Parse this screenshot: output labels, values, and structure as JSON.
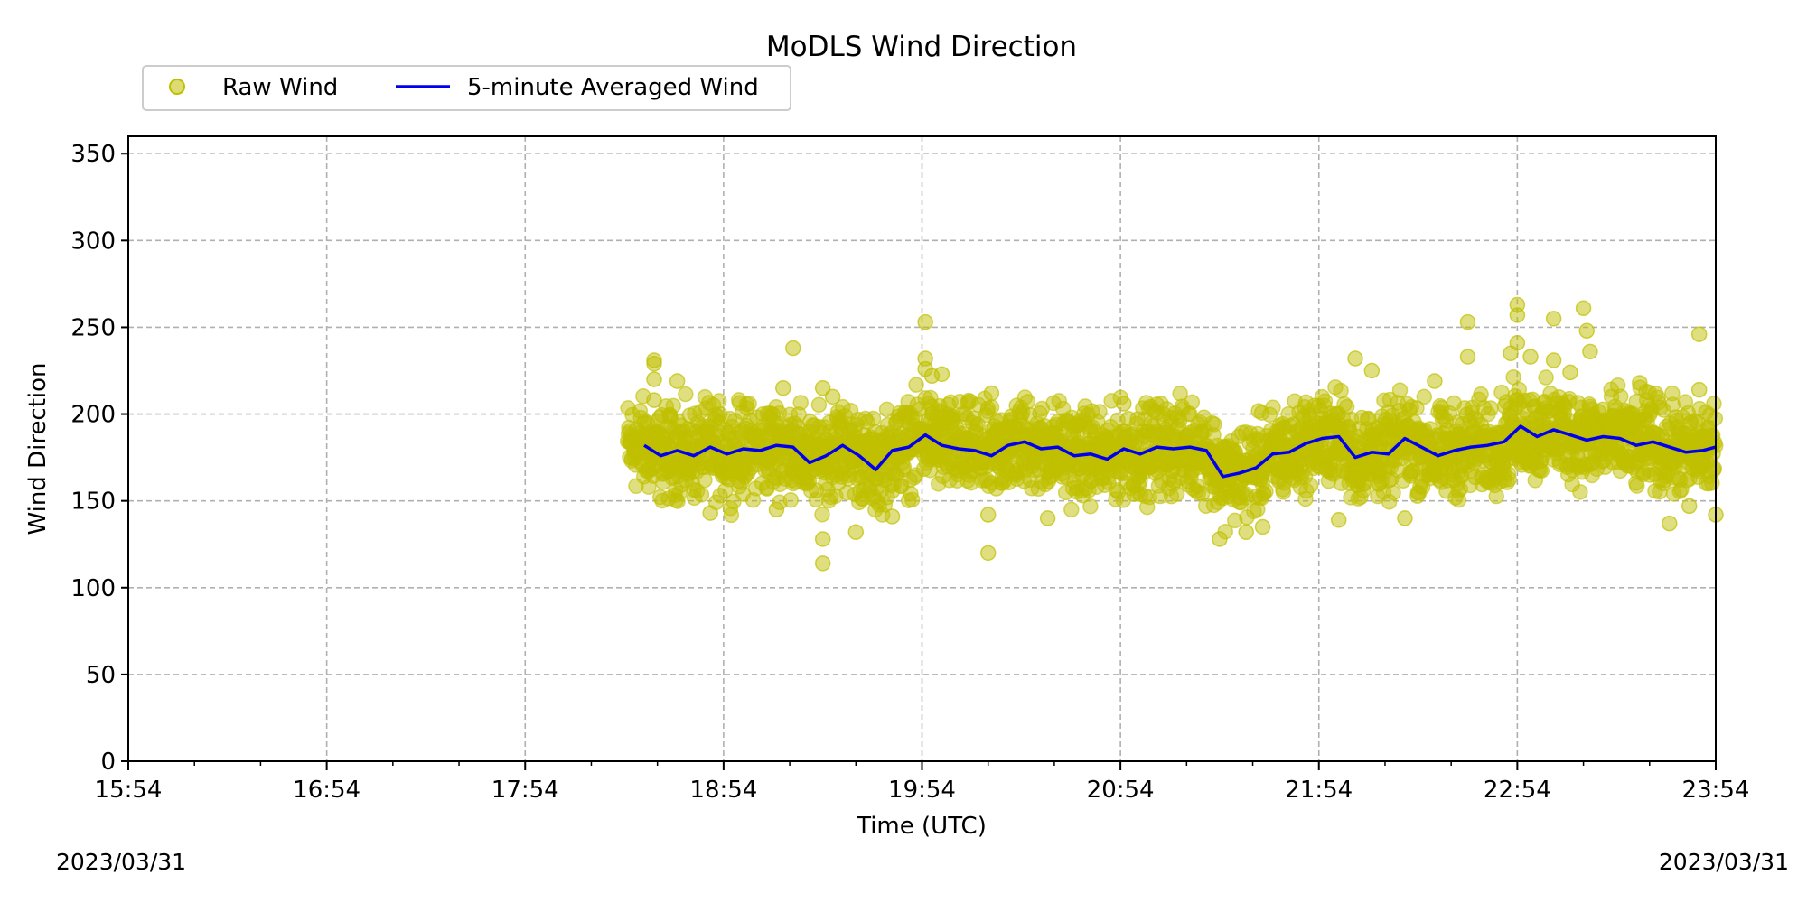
{
  "chart_data": {
    "type": "scatter",
    "title": "MoDLS Wind Direction",
    "xlabel": "Time (UTC)",
    "ylabel": "Wind Direction",
    "ylim": [
      0,
      360
    ],
    "xlim": [
      "15:54",
      "23:54"
    ],
    "xticks": [
      "15:54",
      "16:54",
      "17:54",
      "18:54",
      "19:54",
      "20:54",
      "21:54",
      "22:54",
      "23:54"
    ],
    "yticks": [
      0,
      50,
      100,
      150,
      200,
      250,
      300,
      350
    ],
    "grid": true,
    "legend_position": "top-left (above axes)",
    "series": [
      {
        "name": "Raw Wind",
        "marker": "circle",
        "color": "#bfbf00",
        "description_ranges": [
          {
            "from": "18:25",
            "to": "21:10",
            "low": 145,
            "high": 200
          },
          {
            "from": "21:10",
            "to": "23:54",
            "low": 148,
            "high": 205
          }
        ],
        "outliers": [
          {
            "t": "18:33",
            "v": 231
          },
          {
            "t": "18:33",
            "v": 229
          },
          {
            "t": "18:33",
            "v": 220
          },
          {
            "t": "18:33",
            "v": 208
          },
          {
            "t": "18:40",
            "v": 219
          },
          {
            "t": "19:15",
            "v": 238
          },
          {
            "t": "19:12",
            "v": 215
          },
          {
            "t": "19:24",
            "v": 215
          },
          {
            "t": "19:27",
            "v": 210
          },
          {
            "t": "19:55",
            "v": 253
          },
          {
            "t": "19:55",
            "v": 232
          },
          {
            "t": "19:55",
            "v": 226
          },
          {
            "t": "19:57",
            "v": 222
          },
          {
            "t": "20:00",
            "v": 223
          },
          {
            "t": "20:15",
            "v": 212
          },
          {
            "t": "19:24",
            "v": 114
          },
          {
            "t": "19:24",
            "v": 128
          },
          {
            "t": "19:34",
            "v": 132
          },
          {
            "t": "19:45",
            "v": 141
          },
          {
            "t": "20:14",
            "v": 142
          },
          {
            "t": "20:14",
            "v": 120
          },
          {
            "t": "20:32",
            "v": 140
          },
          {
            "t": "20:55",
            "v": 206
          },
          {
            "t": "21:24",
            "v": 128
          },
          {
            "t": "21:32",
            "v": 132
          },
          {
            "t": "21:37",
            "v": 135
          },
          {
            "t": "22:05",
            "v": 232
          },
          {
            "t": "22:10",
            "v": 225
          },
          {
            "t": "22:29",
            "v": 219
          },
          {
            "t": "22:39",
            "v": 253
          },
          {
            "t": "22:39",
            "v": 233
          },
          {
            "t": "22:54",
            "v": 263
          },
          {
            "t": "22:54",
            "v": 257
          },
          {
            "t": "22:54",
            "v": 241
          },
          {
            "t": "22:52",
            "v": 235
          },
          {
            "t": "22:58",
            "v": 233
          },
          {
            "t": "23:05",
            "v": 255
          },
          {
            "t": "23:05",
            "v": 231
          },
          {
            "t": "23:10",
            "v": 224
          },
          {
            "t": "23:14",
            "v": 261
          },
          {
            "t": "23:15",
            "v": 248
          },
          {
            "t": "23:16",
            "v": 236
          },
          {
            "t": "23:31",
            "v": 218
          },
          {
            "t": "23:33",
            "v": 213
          },
          {
            "t": "23:40",
            "v": 137
          },
          {
            "t": "23:46",
            "v": 147
          },
          {
            "t": "23:49",
            "v": 246
          },
          {
            "t": "23:49",
            "v": 214
          },
          {
            "t": "23:54",
            "v": 142
          },
          {
            "t": "22:00",
            "v": 139
          },
          {
            "t": "22:20",
            "v": 140
          },
          {
            "t": "18:50",
            "v": 143
          },
          {
            "t": "19:10",
            "v": 145
          }
        ]
      },
      {
        "name": "5-minute Averaged Wind",
        "marker": "line",
        "color": "#0000ee",
        "x": [
          "18:30",
          "18:35",
          "18:40",
          "18:45",
          "18:50",
          "18:55",
          "19:00",
          "19:05",
          "19:10",
          "19:15",
          "19:20",
          "19:25",
          "19:30",
          "19:35",
          "19:40",
          "19:45",
          "19:50",
          "19:55",
          "20:00",
          "20:05",
          "20:10",
          "20:15",
          "20:20",
          "20:25",
          "20:30",
          "20:35",
          "20:40",
          "20:45",
          "20:50",
          "20:55",
          "21:00",
          "21:05",
          "21:10",
          "21:15",
          "21:20",
          "21:25",
          "21:30",
          "21:35",
          "21:40",
          "21:45",
          "21:50",
          "21:55",
          "22:00",
          "22:05",
          "22:10",
          "22:15",
          "22:20",
          "22:25",
          "22:30",
          "22:35",
          "22:40",
          "22:45",
          "22:50",
          "22:55",
          "23:00",
          "23:05",
          "23:10",
          "23:15",
          "23:20",
          "23:25",
          "23:30",
          "23:35",
          "23:40",
          "23:45",
          "23:50",
          "23:54"
        ],
        "values": [
          182,
          176,
          179,
          176,
          181,
          177,
          180,
          179,
          182,
          181,
          172,
          176,
          182,
          176,
          168,
          179,
          181,
          188,
          182,
          180,
          179,
          176,
          182,
          184,
          180,
          181,
          176,
          177,
          174,
          180,
          177,
          181,
          180,
          181,
          179,
          164,
          166,
          169,
          177,
          178,
          183,
          186,
          187,
          175,
          178,
          177,
          186,
          181,
          176,
          179,
          181,
          182,
          184,
          193,
          187,
          191,
          188,
          185,
          187,
          186,
          182,
          184,
          181,
          178,
          179,
          181
        ]
      }
    ]
  },
  "footer": {
    "date_left": "2023/03/31",
    "date_right": "2023/03/31"
  }
}
